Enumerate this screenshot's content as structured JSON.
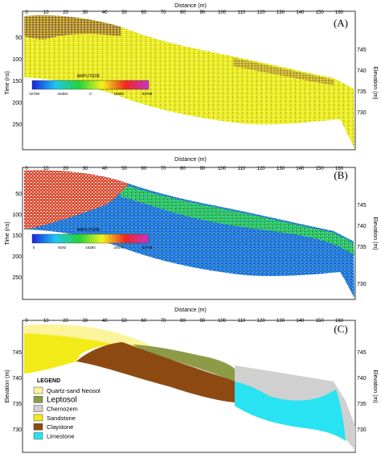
{
  "figure": {
    "panels": [
      {
        "id": "A",
        "panel_label": "(A)",
        "x_axis_label": "Distance (m)",
        "x_ticks": [
          "0",
          "10",
          "20",
          "30",
          "40",
          "50",
          "60",
          "70",
          "80",
          "90",
          "100",
          "110",
          "120",
          "130",
          "140",
          "150",
          "160"
        ],
        "left_axis_label": "Time (ns)",
        "left_ticks": [
          "50",
          "100",
          "150",
          "200",
          "250"
        ],
        "right_axis_label": "Elevation (m)",
        "right_ticks": [
          "745",
          "740",
          "735",
          "730"
        ],
        "colorbar": {
          "title": "AMPLITUDE",
          "tick_labels": [
            "-32768",
            "-16384",
            "0",
            "16384",
            "32768"
          ],
          "colors": [
            "#1a22e0",
            "#1fc7f0",
            "#23d23a",
            "#f2f21a",
            "#f0281e",
            "#c633c9"
          ]
        }
      },
      {
        "id": "B",
        "panel_label": "(B)",
        "x_axis_label": "Distance (m)",
        "x_ticks": [
          "0",
          "10",
          "20",
          "30",
          "40",
          "50",
          "60",
          "70",
          "80",
          "90",
          "100",
          "110",
          "120",
          "130",
          "140",
          "150",
          "160"
        ],
        "left_axis_label": "Time (ns)",
        "left_ticks": [
          "50",
          "100",
          "150",
          "200",
          "250"
        ],
        "right_axis_label": "Elevation (m)",
        "right_ticks": [
          "745",
          "740",
          "735",
          "730"
        ],
        "colorbar": {
          "title": "AMPLITUDE",
          "tick_labels": [
            "0",
            "8192",
            "16384",
            "24576",
            "32768"
          ],
          "colors": [
            "#1a22e0",
            "#1fc7f0",
            "#23d23a",
            "#f2f21a",
            "#f0281e",
            "#c633c9"
          ]
        }
      },
      {
        "id": "C",
        "panel_label": "(C)",
        "x_axis_label": "Distance (m)",
        "x_ticks": [
          "0",
          "10",
          "20",
          "30",
          "40",
          "50",
          "60",
          "70",
          "80",
          "90",
          "100",
          "110",
          "120",
          "130",
          "140",
          "150",
          "160"
        ],
        "left_axis_label": "Elevation (m)",
        "left_ticks": [
          "745",
          "740",
          "735",
          "730"
        ],
        "right_axis_label": "Elevation (m)",
        "right_ticks": [
          "745",
          "740",
          "735",
          "730"
        ],
        "legend": {
          "title": "LEGEND",
          "items": [
            {
              "label": "Quartz-sand Neosol",
              "color": "#fbf49a"
            },
            {
              "label": "Leptosol",
              "color": "#8d9b46"
            },
            {
              "label": "Chernozem",
              "color": "#d0d0d0"
            },
            {
              "label": "Sandstone",
              "color": "#f3eb17"
            },
            {
              "label": "Claystone",
              "color": "#8c4a12"
            },
            {
              "label": "Limestone",
              "color": "#29e3f2"
            }
          ]
        }
      }
    ]
  }
}
